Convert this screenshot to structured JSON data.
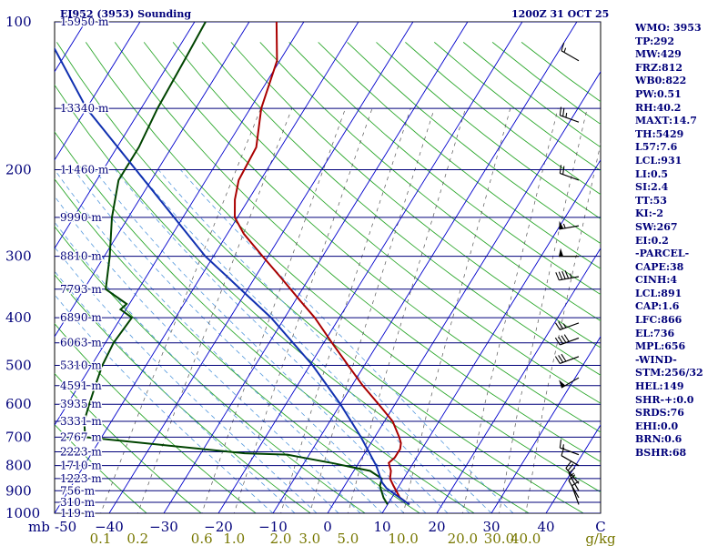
{
  "header": {
    "station": "EI952 (3953) Sounding",
    "time": "1200Z 31 OCT 25"
  },
  "indices": [
    "WMO: 3953",
    "TP:292",
    "MW:429",
    "FRZ:812",
    "WB0:822",
    "PW:0.51",
    "RH:40.2",
    "MAXT:14.7",
    "TH:5429",
    "L57:7.6",
    "LCL:931",
    "LI:0.5",
    "SI:2.4",
    "TT:53",
    "KI:-2",
    "SW:267",
    "EI:0.2",
    "-PARCEL-",
    "CAPE:38",
    "CINH:4",
    "LCL:891",
    "CAP:1.6",
    "LFC:866",
    "EL:736",
    "MPL:656",
    "-WIND-",
    "STM:256/32",
    "HEL:149",
    "SHR-+:0.0",
    "SRDS:76",
    "EHI:0.0",
    "BRN:0.6",
    "BSHR:68"
  ],
  "colors": {
    "isobar": "#00007a",
    "isotherm": "#0000cc",
    "dry_adiabat": "#2ea82e",
    "moist_adiabat": "#5599dd",
    "mixing_ratio": "#555555",
    "temperature": "#aa0000",
    "dewpoint": "#004400",
    "parcel": "#1030b0",
    "axis_labels": "#00007a",
    "mixing_labels": "#777700",
    "wind_barb": "#000000"
  },
  "chart_data": {
    "type": "line",
    "title": "EI952 (3953) Sounding",
    "subtitle": "1200Z 31 OCT 25",
    "pressure_unit": "mb",
    "mixing_unit": "g/kg",
    "celsius_unit": "C",
    "p_range": [
      1000,
      100
    ],
    "t_range": [
      -50,
      50
    ],
    "pressure_levels": [
      {
        "p": 100,
        "label": "100",
        "height": "15950 m"
      },
      {
        "p": 150,
        "label": "",
        "height": "13340 m"
      },
      {
        "p": 200,
        "label": "200",
        "height": "11460 m"
      },
      {
        "p": 250,
        "label": "",
        "height": "9990 m"
      },
      {
        "p": 300,
        "label": "300",
        "height": "8810 m"
      },
      {
        "p": 350,
        "label": "",
        "height": "7793 m"
      },
      {
        "p": 400,
        "label": "400",
        "height": "6890 m"
      },
      {
        "p": 450,
        "label": "",
        "height": "6063 m"
      },
      {
        "p": 500,
        "label": "500",
        "height": "5310 m"
      },
      {
        "p": 550,
        "label": "",
        "height": "4591 m"
      },
      {
        "p": 600,
        "label": "600",
        "height": "3935 m"
      },
      {
        "p": 650,
        "label": "",
        "height": "3331 m"
      },
      {
        "p": 700,
        "label": "700",
        "height": "2767 m"
      },
      {
        "p": 750,
        "label": "",
        "height": "2223 m"
      },
      {
        "p": 800,
        "label": "800",
        "height": "1710 m"
      },
      {
        "p": 850,
        "label": "",
        "height": "1223 m"
      },
      {
        "p": 900,
        "label": "900",
        "height": "756 m"
      },
      {
        "p": 950,
        "label": "",
        "height": "310 m"
      },
      {
        "p": 1000,
        "label": "1000",
        "height": "119 m"
      }
    ],
    "temp_ticks": [
      {
        "value": -50,
        "label": "-50"
      },
      {
        "value": -40,
        "label": "−40"
      },
      {
        "value": -30,
        "label": "−30"
      },
      {
        "value": -20,
        "label": "−20"
      },
      {
        "value": -10,
        "label": "−10"
      },
      {
        "value": 0,
        "label": "0"
      },
      {
        "value": 10,
        "label": "10"
      },
      {
        "value": 20,
        "label": "20"
      },
      {
        "value": 30,
        "label": "30"
      },
      {
        "value": 40,
        "label": "40"
      }
    ],
    "mixing_ratios": [
      {
        "w": 0.1,
        "label": "0.1"
      },
      {
        "w": 0.2,
        "label": "0.2"
      },
      {
        "w": 0.6,
        "label": "0.6"
      },
      {
        "w": 1.0,
        "label": "1.0"
      },
      {
        "w": 2.0,
        "label": "2.0"
      },
      {
        "w": 3.0,
        "label": "3.0"
      },
      {
        "w": 5.0,
        "label": "5.0"
      },
      {
        "w": 10.0,
        "label": "10.0"
      },
      {
        "w": 20.0,
        "label": "20.0"
      },
      {
        "w": 30.0,
        "label": "30.0"
      },
      {
        "w": 40.0,
        "label": "40.0"
      }
    ],
    "series": [
      {
        "key": "temperature",
        "points": [
          [
            960,
            14.0
          ],
          [
            930,
            11.5
          ],
          [
            880,
            9.0
          ],
          [
            850,
            7.5
          ],
          [
            820,
            6.8
          ],
          [
            790,
            5.5
          ],
          [
            770,
            6.0
          ],
          [
            740,
            6.0
          ],
          [
            720,
            5.5
          ],
          [
            700,
            4.5
          ],
          [
            650,
            1.5
          ],
          [
            600,
            -3.0
          ],
          [
            550,
            -8.0
          ],
          [
            500,
            -13.0
          ],
          [
            450,
            -18.5
          ],
          [
            400,
            -24.5
          ],
          [
            370,
            -29.0
          ],
          [
            330,
            -35.5
          ],
          [
            300,
            -41.0
          ],
          [
            270,
            -47.0
          ],
          [
            250,
            -50.5
          ],
          [
            230,
            -52.5
          ],
          [
            210,
            -54.0
          ],
          [
            180,
            -54.5
          ],
          [
            150,
            -58.0
          ],
          [
            120,
            -60.5
          ],
          [
            100,
            -65.0
          ]
        ]
      },
      {
        "key": "dewpoint",
        "points": [
          [
            960,
            10.0
          ],
          [
            930,
            8.5
          ],
          [
            880,
            6.5
          ],
          [
            850,
            6.0
          ],
          [
            820,
            3.0
          ],
          [
            790,
            -5.0
          ],
          [
            770,
            -11.0
          ],
          [
            760,
            -14.0
          ],
          [
            755,
            -22.0
          ],
          [
            700,
            -53.0
          ],
          [
            650,
            -55.0
          ],
          [
            600,
            -56.0
          ],
          [
            550,
            -57.0
          ],
          [
            500,
            -58.0
          ],
          [
            450,
            -58.5
          ],
          [
            400,
            -58.0
          ],
          [
            385,
            -61.0
          ],
          [
            375,
            -60.5
          ],
          [
            350,
            -66.0
          ],
          [
            300,
            -69.0
          ],
          [
            250,
            -73.0
          ],
          [
            210,
            -76.0
          ],
          [
            180,
            -76.0
          ],
          [
            150,
            -77.0
          ],
          [
            120,
            -77.5
          ],
          [
            100,
            -78.0
          ]
        ]
      },
      {
        "key": "parcel",
        "points": [
          [
            960,
            14.0
          ],
          [
            930,
            11.5
          ],
          [
            890,
            8.0
          ],
          [
            866,
            6.5
          ],
          [
            800,
            3.5
          ],
          [
            700,
            -2.5
          ],
          [
            600,
            -10.0
          ],
          [
            500,
            -19.5
          ],
          [
            400,
            -32.5
          ],
          [
            300,
            -51.5
          ],
          [
            200,
            -74.0
          ],
          [
            150,
            -90.0
          ],
          [
            110,
            -104.0
          ]
        ]
      }
    ],
    "winds": [
      {
        "p": 120,
        "dir": 300,
        "spd": 15
      },
      {
        "p": 160,
        "dir": 290,
        "spd": 25
      },
      {
        "p": 210,
        "dir": 290,
        "spd": 20
      },
      {
        "p": 260,
        "dir": 260,
        "spd": 55
      },
      {
        "p": 300,
        "dir": 270,
        "spd": 50
      },
      {
        "p": 330,
        "dir": 260,
        "spd": 45
      },
      {
        "p": 410,
        "dir": 250,
        "spd": 25
      },
      {
        "p": 440,
        "dir": 250,
        "spd": 40
      },
      {
        "p": 480,
        "dir": 250,
        "spd": 30
      },
      {
        "p": 530,
        "dir": 240,
        "spd": 50
      },
      {
        "p": 760,
        "dir": 290,
        "spd": 15
      },
      {
        "p": 800,
        "dir": 300,
        "spd": 10
      },
      {
        "p": 870,
        "dir": 320,
        "spd": 20
      },
      {
        "p": 900,
        "dir": 330,
        "spd": 15
      },
      {
        "p": 930,
        "dir": 330,
        "spd": 10
      },
      {
        "p": 960,
        "dir": 340,
        "spd": 10
      }
    ]
  }
}
